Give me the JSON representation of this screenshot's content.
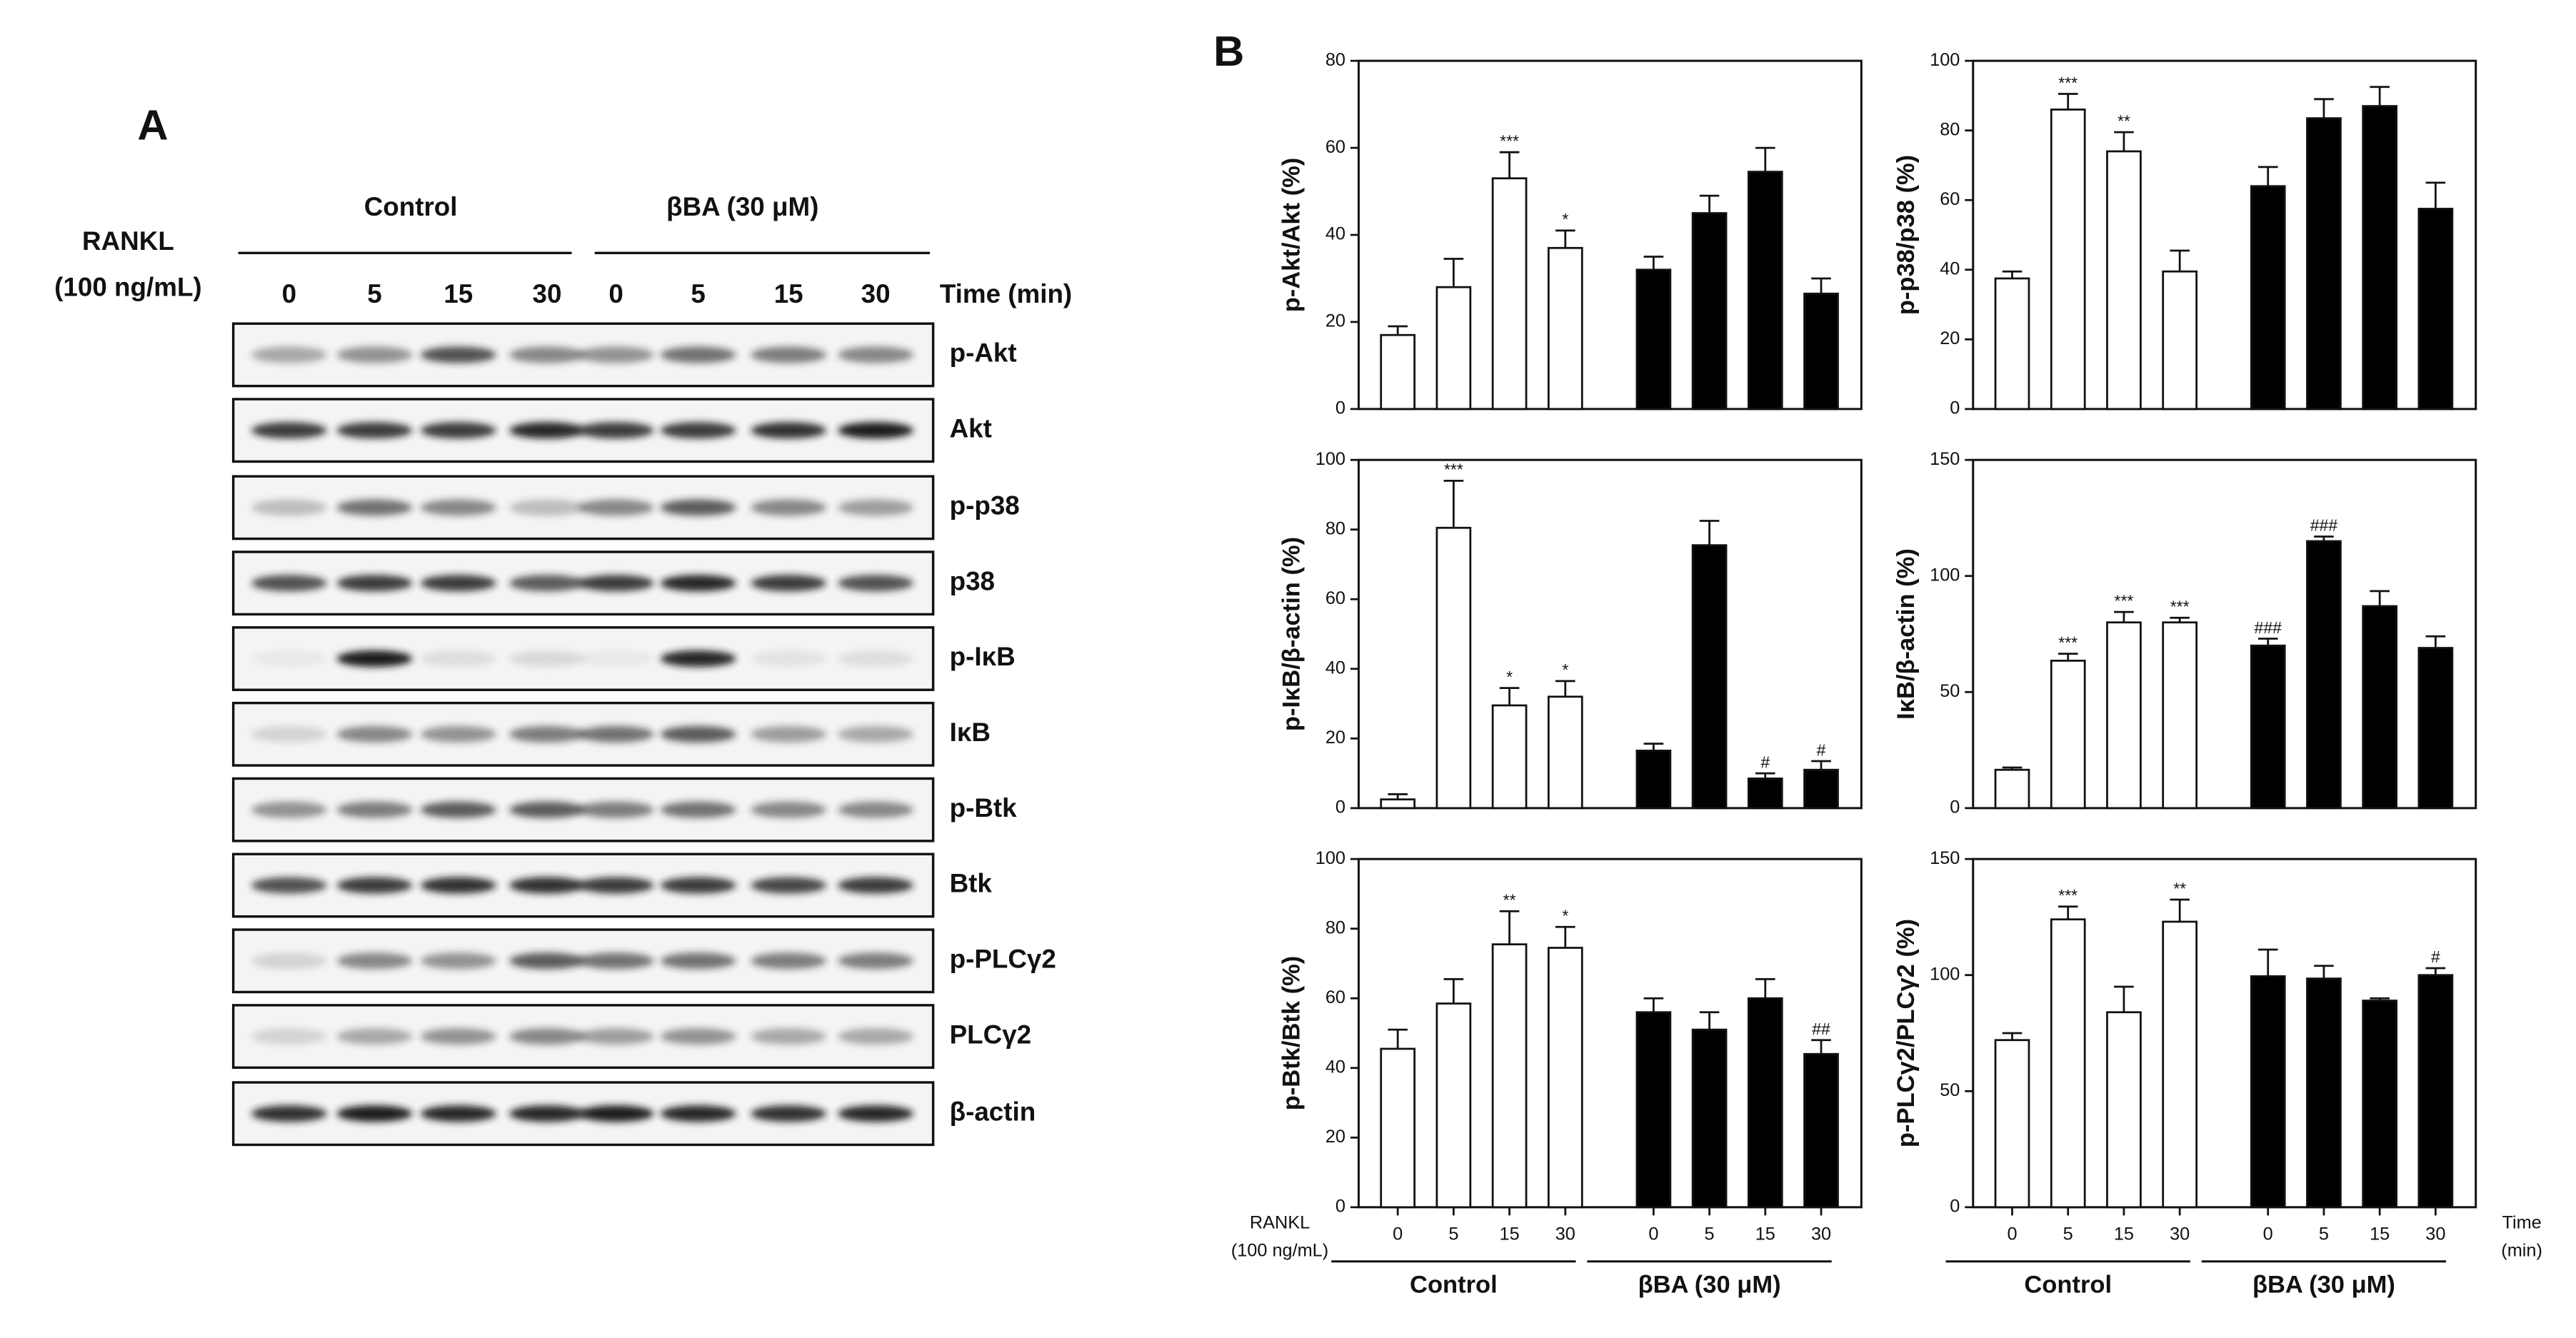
{
  "panel_labels": [
    "A",
    "B"
  ],
  "blot": {
    "treatment": [
      "RANKL",
      "(100 ng/mL)"
    ],
    "groups": [
      "Control",
      "βBA (30 μM)"
    ],
    "times": [
      "0",
      "5",
      "15",
      "30",
      "0",
      "5",
      "15",
      "30"
    ],
    "time_label": "Time (min)",
    "rows": [
      "p-Akt",
      "Akt",
      "p-p38",
      "p38",
      "p-IκB",
      "IκB",
      "p-Btk",
      "Btk",
      "p-PLCγ2",
      "PLCγ2",
      "β-actin"
    ]
  },
  "chart_data": [
    {
      "type": "bar",
      "ylabel": "p-Akt/Akt (%)",
      "ylim": [
        0,
        80
      ],
      "yticks": [
        0,
        20,
        40,
        60,
        80
      ],
      "series": [
        {
          "color": "#ffffff",
          "values": [
            17,
            28,
            53,
            37
          ],
          "errors": [
            2,
            6.5,
            6,
            4
          ],
          "annotations": [
            null,
            null,
            "***",
            "*"
          ]
        },
        {
          "color": "#000000",
          "values": [
            32,
            45,
            54.5,
            26.5
          ],
          "errors": [
            3,
            4,
            5.5,
            3.5
          ],
          "annotations": [
            null,
            null,
            null,
            null
          ]
        }
      ]
    },
    {
      "type": "bar",
      "ylabel": "p-p38/p38 (%)",
      "ylim": [
        0,
        100
      ],
      "yticks": [
        0,
        20,
        40,
        60,
        80,
        100
      ],
      "series": [
        {
          "color": "#ffffff",
          "values": [
            37.5,
            86,
            74,
            39.5
          ],
          "errors": [
            2,
            4.5,
            5.5,
            6
          ],
          "annotations": [
            null,
            "***",
            "**",
            null
          ]
        },
        {
          "color": "#000000",
          "values": [
            64,
            83.5,
            87,
            57.5
          ],
          "errors": [
            5.5,
            5.5,
            5.5,
            7.5
          ],
          "annotations": [
            null,
            null,
            null,
            null
          ]
        }
      ]
    },
    {
      "type": "bar",
      "ylabel": "p-IκB/β-actin (%)",
      "ylim": [
        0,
        100
      ],
      "yticks": [
        0,
        20,
        40,
        60,
        80,
        100
      ],
      "series": [
        {
          "color": "#ffffff",
          "values": [
            2.5,
            80.5,
            29.5,
            32
          ],
          "errors": [
            1.5,
            13.5,
            5,
            4.5
          ],
          "annotations": [
            null,
            "***",
            "*",
            "*"
          ]
        },
        {
          "color": "#000000",
          "values": [
            16.5,
            75.5,
            8.5,
            11
          ],
          "errors": [
            2,
            7,
            1.5,
            2.5
          ],
          "annotations": [
            null,
            null,
            "#",
            "#"
          ]
        }
      ]
    },
    {
      "type": "bar",
      "ylabel": "IκB/β-actin (%)",
      "ylim": [
        0,
        150
      ],
      "yticks": [
        0,
        50,
        100,
        150
      ],
      "series": [
        {
          "color": "#ffffff",
          "values": [
            16.5,
            63.5,
            80,
            80
          ],
          "errors": [
            1,
            3,
            4.5,
            2
          ],
          "annotations": [
            null,
            "***",
            "***",
            "***"
          ]
        },
        {
          "color": "#000000",
          "values": [
            70,
            115,
            87,
            69
          ],
          "errors": [
            3,
            2,
            6.5,
            5
          ],
          "annotations": [
            "###",
            "###",
            null,
            null
          ]
        }
      ]
    },
    {
      "type": "bar",
      "ylabel": "p-Btk/Btk  (%)",
      "ylim": [
        0,
        100
      ],
      "yticks": [
        0,
        20,
        40,
        60,
        80,
        100
      ],
      "categories": [
        "0",
        "5",
        "15",
        "30"
      ],
      "xlabel": [
        "RANKL",
        "(100 ng/mL)"
      ],
      "series": [
        {
          "name": "Control",
          "color": "#ffffff",
          "values": [
            45.5,
            58.5,
            75.5,
            74.5
          ],
          "errors": [
            5.5,
            7,
            9.5,
            6
          ],
          "annotations": [
            null,
            null,
            "**",
            "*"
          ]
        },
        {
          "name": "βBA (30 μM)",
          "color": "#000000",
          "values": [
            56,
            51,
            60,
            44
          ],
          "errors": [
            4,
            5,
            5.5,
            4
          ],
          "annotations": [
            null,
            null,
            null,
            "##"
          ]
        }
      ]
    },
    {
      "type": "bar",
      "ylabel": "p-PLCγ2/PLCγ2 (%)",
      "ylim": [
        0,
        150
      ],
      "yticks": [
        0,
        50,
        100,
        150
      ],
      "categories": [
        "0",
        "5",
        "15",
        "30"
      ],
      "xlabel": [
        "Time",
        "(min)"
      ],
      "series": [
        {
          "name": "Control",
          "color": "#ffffff",
          "values": [
            72,
            124,
            84,
            123
          ],
          "errors": [
            3,
            5.5,
            11,
            9.5
          ],
          "annotations": [
            null,
            "***",
            null,
            "**"
          ]
        },
        {
          "name": "βBA (30 μM)",
          "color": "#000000",
          "values": [
            99.5,
            98.5,
            89,
            100
          ],
          "errors": [
            11.5,
            5.5,
            1,
            3
          ],
          "annotations": [
            null,
            null,
            null,
            "#"
          ]
        }
      ]
    }
  ]
}
